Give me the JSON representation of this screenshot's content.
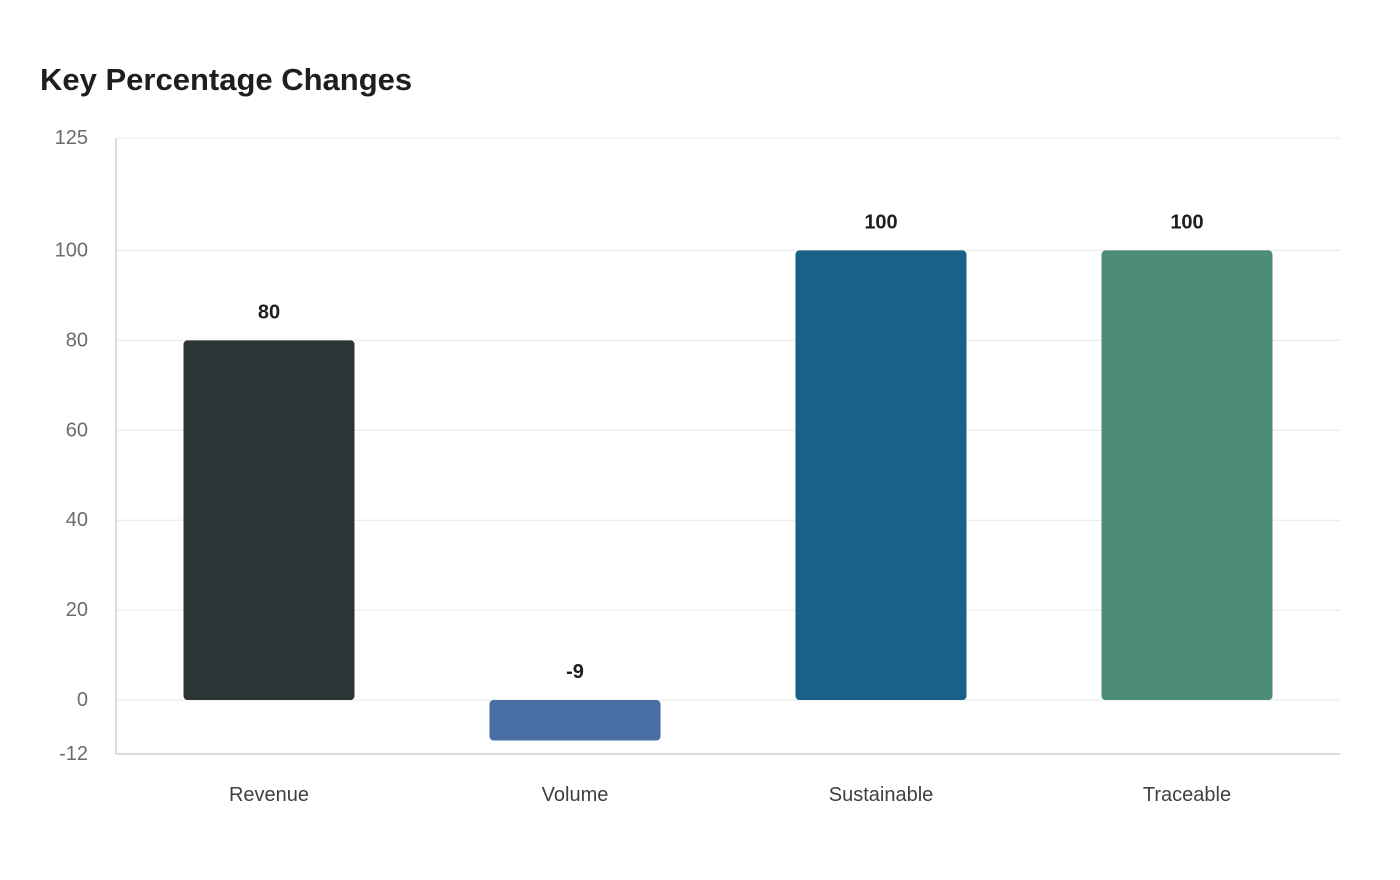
{
  "chart_data": {
    "type": "bar",
    "title": "Key Percentage Changes",
    "xlabel": "",
    "ylabel": "",
    "categories": [
      "Revenue",
      "Volume",
      "Sustainable",
      "Traceable"
    ],
    "values": [
      80,
      -9,
      100,
      100
    ],
    "colors": [
      "#2d3436",
      "#4a6fa5",
      "#1a6188",
      "#4e8c7a"
    ],
    "ylim": [
      -12,
      125
    ],
    "yticks": [
      125,
      100,
      80,
      60,
      40,
      20,
      0,
      -12
    ],
    "grid": true,
    "legend": "none"
  }
}
